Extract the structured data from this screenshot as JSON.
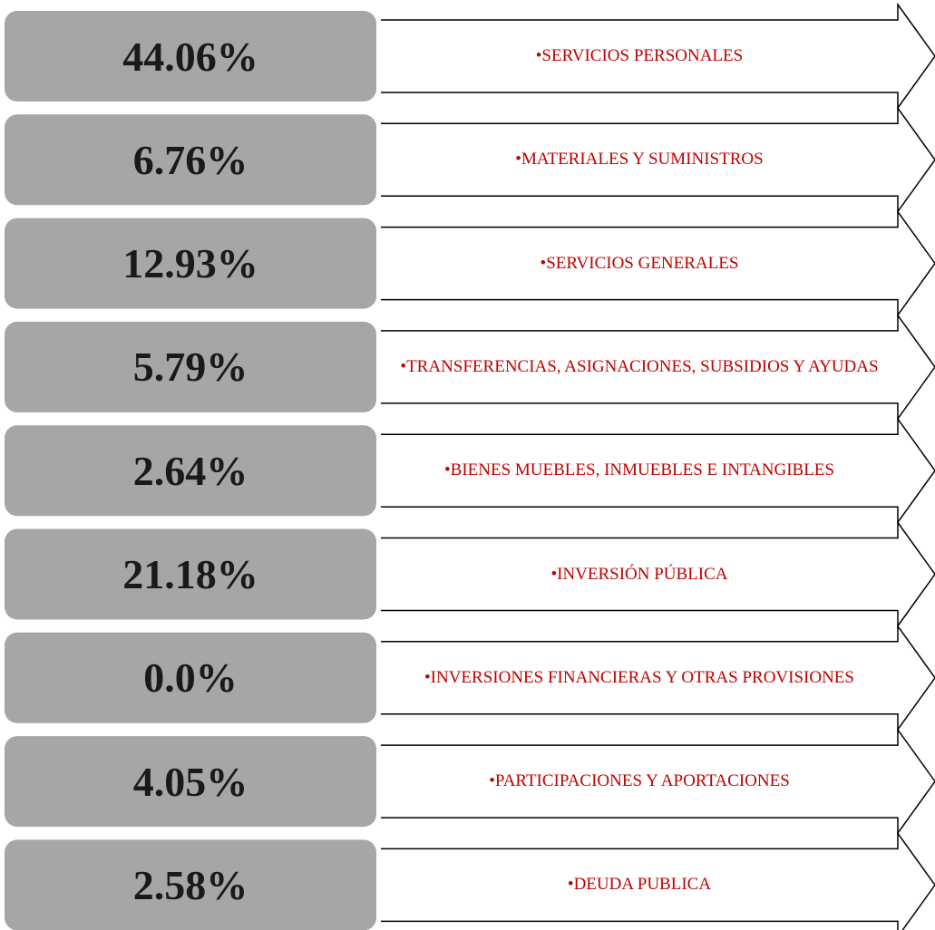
{
  "items": [
    {
      "percent": "44.06%",
      "label": "•SERVICIOS PERSONALES"
    },
    {
      "percent": "6.76%",
      "label": "•MATERIALES Y SUMINISTROS"
    },
    {
      "percent": "12.93%",
      "label": "•SERVICIOS GENERALES"
    },
    {
      "percent": "5.79%",
      "label": "•TRANSFERENCIAS, ASIGNACIONES, SUBSIDIOS Y AYUDAS"
    },
    {
      "percent": "2.64%",
      "label": "•BIENES MUEBLES, INMUEBLES E INTANGIBLES"
    },
    {
      "percent": "21.18%",
      "label": "•INVERSIÓN PÚBLICA"
    },
    {
      "percent": "0.0%",
      "label": "•INVERSIONES FINANCIERAS Y OTRAS PROVISIONES"
    },
    {
      "percent": "4.05%",
      "label": "•PARTICIPACIONES Y APORTACIONES"
    },
    {
      "percent": "2.58%",
      "label": "•DEUDA PUBLICA"
    }
  ]
}
